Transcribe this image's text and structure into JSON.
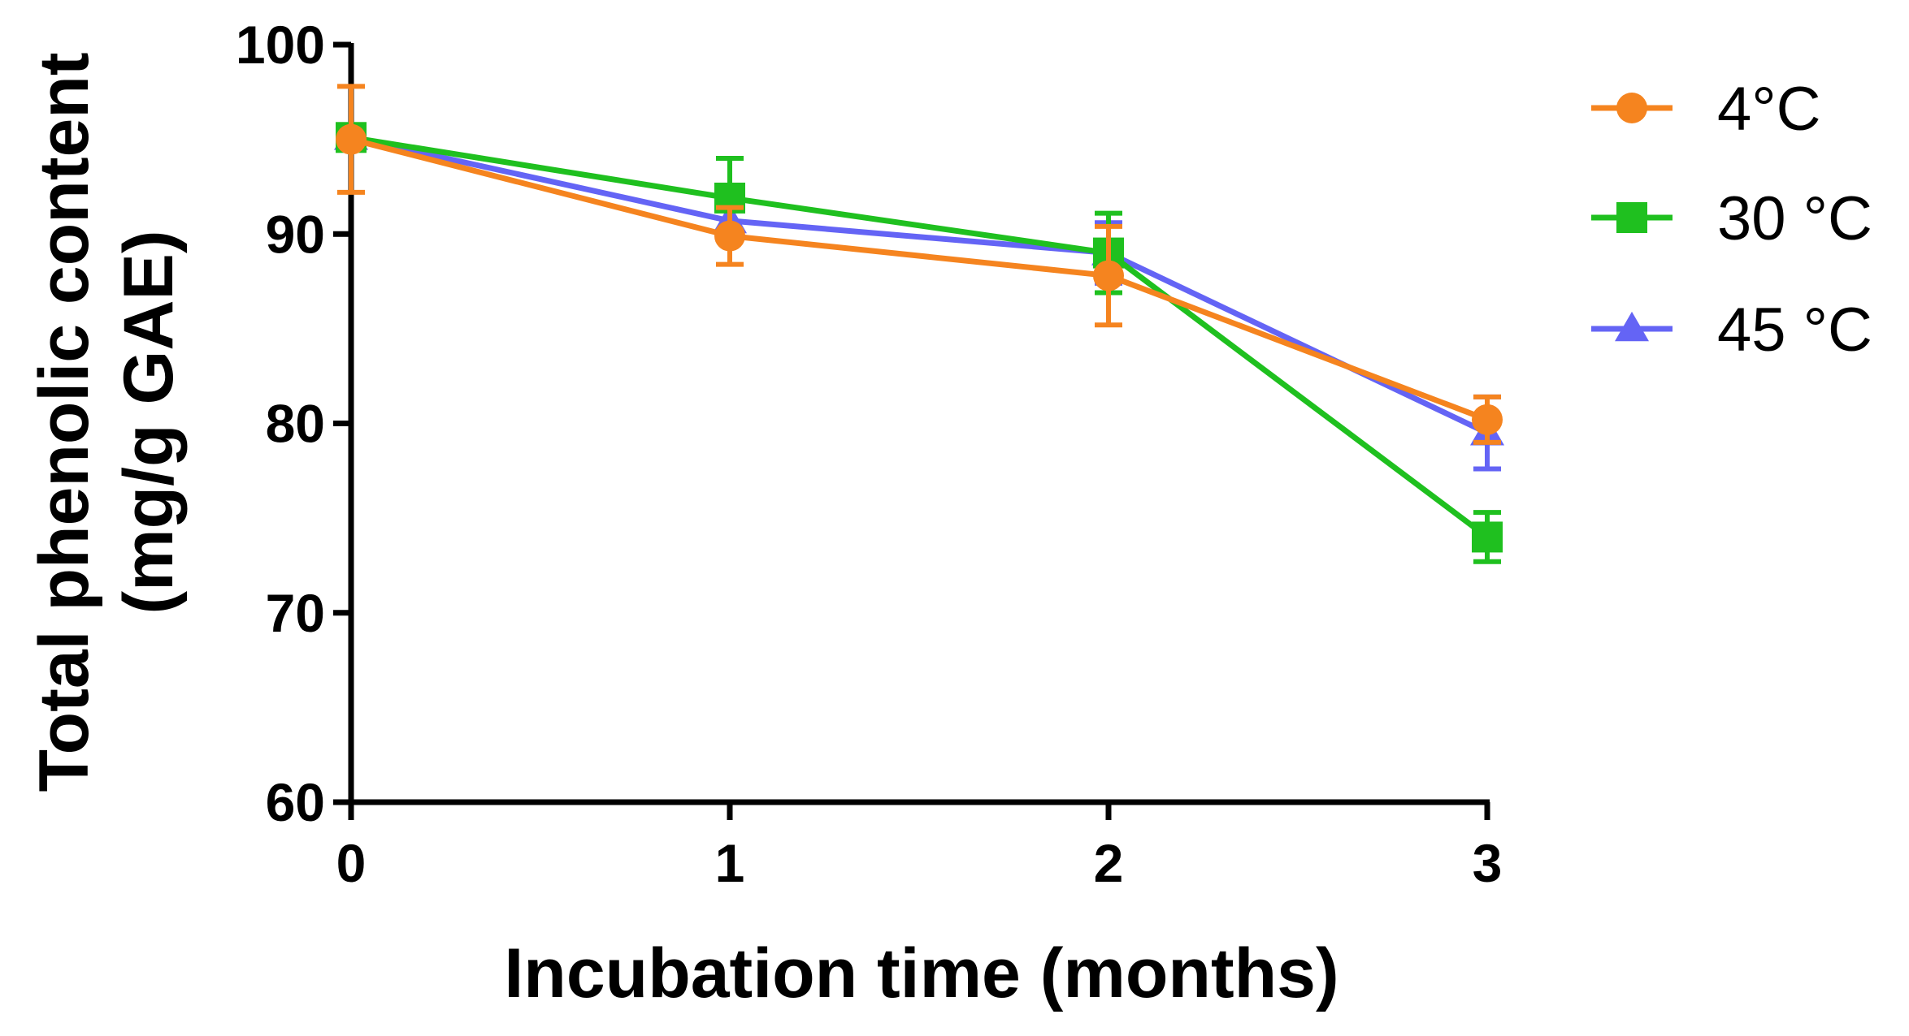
{
  "chart_data": {
    "type": "line",
    "title": "",
    "xlabel": "Incubation time (months)",
    "ylabel_lines": [
      "Total phenolic content",
      "(mg/g GAE)"
    ],
    "x": [
      0,
      1,
      2,
      3
    ],
    "xticks": [
      "0",
      "1",
      "2",
      "3"
    ],
    "xlim": [
      0,
      3
    ],
    "ylim": [
      60,
      100
    ],
    "yticks": [
      "60",
      "70",
      "80",
      "90",
      "100"
    ],
    "legend_position": "top-right",
    "grid": false,
    "series": [
      {
        "name": "4°C",
        "color": "#f5841f",
        "marker": "circle",
        "values": [
          95.0,
          89.9,
          87.8,
          80.2
        ],
        "errors": [
          2.8,
          1.5,
          2.6,
          1.2
        ]
      },
      {
        "name": "30 °C",
        "color": "#1fc01f",
        "marker": "square",
        "values": [
          95.1,
          91.9,
          89.0,
          74.0
        ],
        "errors": [
          0.6,
          2.1,
          2.1,
          1.3
        ]
      },
      {
        "name": "45 °C",
        "color": "#6464f5",
        "marker": "triangle",
        "values": [
          95.1,
          90.7,
          89.0,
          79.5
        ],
        "errors": [
          0.5,
          0.6,
          1.6,
          1.9
        ]
      }
    ]
  }
}
